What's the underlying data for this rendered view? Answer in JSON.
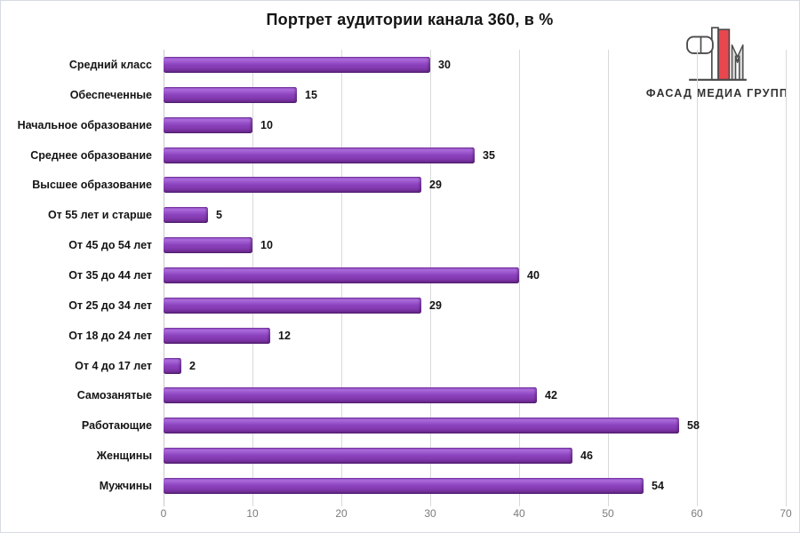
{
  "title": "Портрет аудитории канала 360, в %",
  "logo": {
    "name": "fasad-media-group-logo",
    "text": "ФАСАД МЕДИА ГРУПП",
    "colors": {
      "red": "#e84750",
      "outline": "#4a4a4a",
      "gray_fill": "#d6d6d6"
    }
  },
  "chart_data": {
    "type": "bar",
    "orientation": "horizontal",
    "title": "Портрет аудитории канала 360, в %",
    "categories": [
      "Средний класс",
      "Обеспеченные",
      "Начальное образование",
      "Среднее образование",
      "Высшее образование",
      "От 55 лет и старше",
      "От 45 до 54 лет",
      "От 35 до 44 лет",
      "От 25 до 34 лет",
      "От 18 до 24 лет",
      "От 4 до 17 лет",
      "Самозанятые",
      "Работающие",
      "Женщины",
      "Мужчины"
    ],
    "values": [
      30,
      15,
      10,
      35,
      29,
      5,
      10,
      40,
      29,
      12,
      2,
      42,
      58,
      46,
      54
    ],
    "xlabel": "",
    "ylabel": "",
    "xlim": [
      0,
      70
    ],
    "xticks": [
      0,
      10,
      20,
      30,
      40,
      50,
      60,
      70
    ],
    "grid": true,
    "legend": false,
    "data_labels": true,
    "colors": {
      "bar": "#8b41bd",
      "grid": "#d9d9d9",
      "tick_label": "#7c7c7c",
      "text": "#141414"
    }
  }
}
